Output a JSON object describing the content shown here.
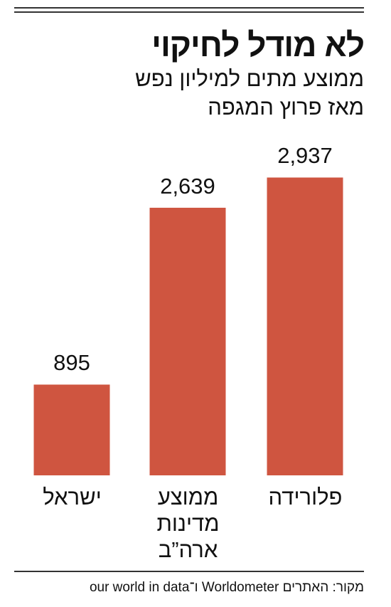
{
  "chart_data": {
    "type": "bar",
    "title": "לא מודל לחיקוי",
    "subtitle": [
      "ממוצע מתים למיליון נפש",
      "מאז פרוץ המגפה"
    ],
    "categories": [
      "ישראל",
      "ממוצע מדינות ארה”ב",
      "פלורידה"
    ],
    "values": [
      895,
      2639,
      2937
    ],
    "value_labels": [
      "895",
      "2,639",
      "2,937"
    ],
    "color": "#cf5540",
    "source": "מקור: האתרים Worldometer ו־our world in data"
  }
}
